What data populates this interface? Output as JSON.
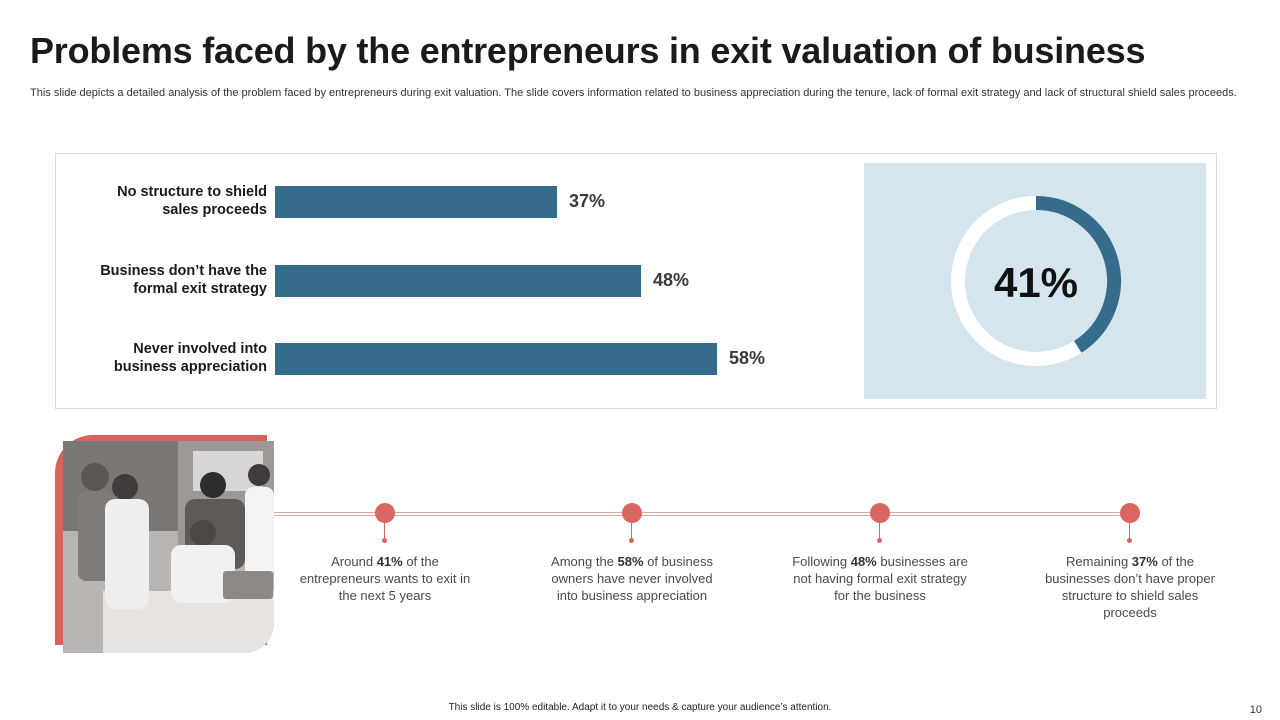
{
  "slide": {
    "title": "Problems faced by the entrepreneurs in exit valuation of business",
    "subtitle": "This slide depicts a detailed analysis of the problem faced by entrepreneurs during exit valuation. The slide covers information related to business appreciation during the tenure, lack of formal exit strategy and lack of structural shield sales proceeds.",
    "footer": "This slide is 100% editable.  Adapt it to your needs & capture your audience’s attention.",
    "page_number": "10",
    "photo_description_icon": "team-photo"
  },
  "colors": {
    "bar": "#356c8c",
    "donut_track": "#ffffff",
    "donut_fill": "#356c8c",
    "donut_bg": "#d4e5ee",
    "accent": "#d9665f"
  },
  "chart_data": [
    {
      "type": "bar",
      "orientation": "horizontal",
      "title": "",
      "xlabel": "",
      "ylabel": "",
      "xlim": [
        0,
        100
      ],
      "grid": false,
      "categories": [
        "No structure to shield sales proceeds",
        "Business don’t have the formal exit strategy",
        "Never involved into business appreciation"
      ],
      "category_lines": [
        [
          "No structure to shield",
          "sales proceeds"
        ],
        [
          "Business don’t have the",
          "formal exit strategy"
        ],
        [
          "Never involved into",
          "business appreciation"
        ]
      ],
      "values": [
        37,
        48,
        58
      ],
      "value_labels": [
        "37%",
        "48%",
        "58%"
      ]
    },
    {
      "type": "pie",
      "style": "donut",
      "values": [
        41,
        59
      ],
      "labels": [
        "41%",
        ""
      ],
      "center_label": "41%"
    }
  ],
  "timeline": [
    {
      "pre": "Around ",
      "value": "41%",
      "post": " of the entrepreneurs wants to exit in the next 5 years"
    },
    {
      "pre": "Among the ",
      "value": "58%",
      "post": " of business owners have never involved into business appreciation"
    },
    {
      "pre": "Following ",
      "value": "48%",
      "post": " businesses are not having formal exit strategy for the business"
    },
    {
      "pre": "Remaining ",
      "value": "37%",
      "post": " of the businesses don’t have proper structure to shield sales proceeds"
    }
  ]
}
